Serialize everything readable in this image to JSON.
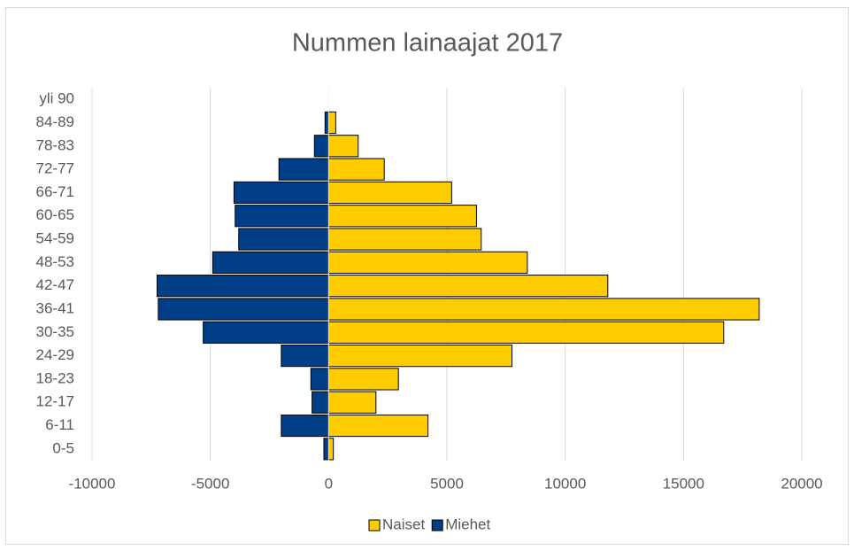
{
  "chart_data": {
    "type": "bar",
    "orientation": "horizontal",
    "title": "Nummen lainaajat 2017",
    "categories": [
      "0-5",
      "6-11",
      "12-17",
      "18-23",
      "24-29",
      "30-35",
      "36-41",
      "42-47",
      "48-53",
      "54-59",
      "60-65",
      "66-71",
      "72-77",
      "78-83",
      "84-89",
      "yli 90"
    ],
    "series": [
      {
        "name": "Naiset",
        "color": "#ffcc00",
        "values": [
          200,
          4200,
          2000,
          2950,
          7750,
          16700,
          18200,
          11800,
          8400,
          6450,
          6250,
          5200,
          2350,
          1250,
          300,
          0
        ]
      },
      {
        "name": "Miehet",
        "color": "#003f87",
        "values": [
          -200,
          -2000,
          -700,
          -750,
          -2000,
          -5300,
          -7200,
          -7250,
          -4900,
          -3800,
          -3950,
          -4000,
          -2100,
          -600,
          -150,
          0
        ]
      }
    ],
    "xlim": [
      -10000,
      20000
    ],
    "xticks": [
      -10000,
      -5000,
      0,
      5000,
      10000,
      15000,
      20000
    ],
    "grid": true,
    "legend": "bottom"
  }
}
